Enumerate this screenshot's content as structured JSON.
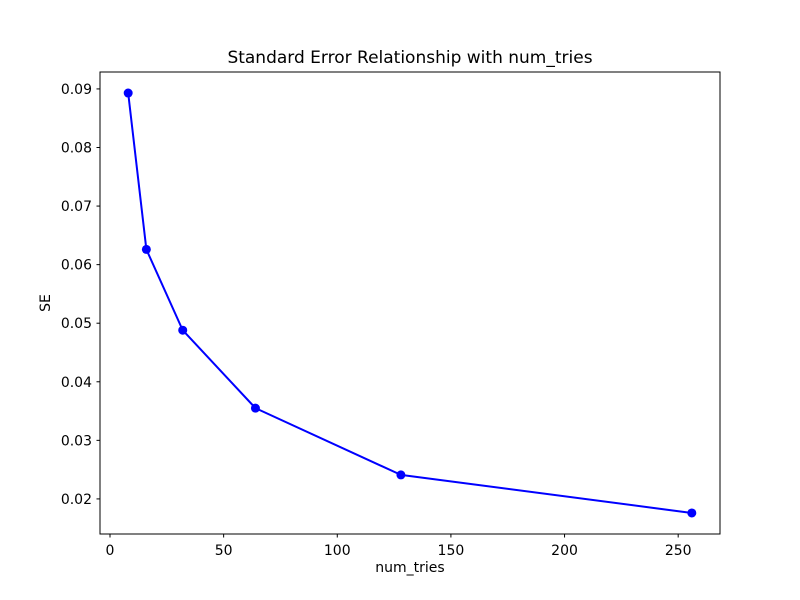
{
  "figure": {
    "background": "#ffffff"
  },
  "chart_data": {
    "type": "line",
    "title": "Standard Error Relationship with num_tries",
    "xlabel": "num_tries",
    "ylabel": "SE",
    "x": [
      8,
      16,
      32,
      64,
      128,
      256
    ],
    "y": [
      0.0893,
      0.0626,
      0.0488,
      0.0355,
      0.0241,
      0.0176
    ],
    "xlim": [
      -4.4,
      268.4
    ],
    "ylim": [
      0.01401,
      0.09289
    ],
    "xticks": [
      0,
      50,
      100,
      150,
      200,
      250
    ],
    "xtick_labels": [
      "0",
      "50",
      "100",
      "150",
      "200",
      "250"
    ],
    "yticks": [
      0.02,
      0.03,
      0.04,
      0.05,
      0.06,
      0.07,
      0.08,
      0.09
    ],
    "ytick_labels": [
      "0.02",
      "0.03",
      "0.04",
      "0.05",
      "0.06",
      "0.07",
      "0.08",
      "0.09"
    ],
    "grid": false,
    "legend": "none",
    "marker": "circle",
    "line_color": "#0000ff",
    "axes_color": "#000000",
    "background_color": "#ffffff"
  }
}
